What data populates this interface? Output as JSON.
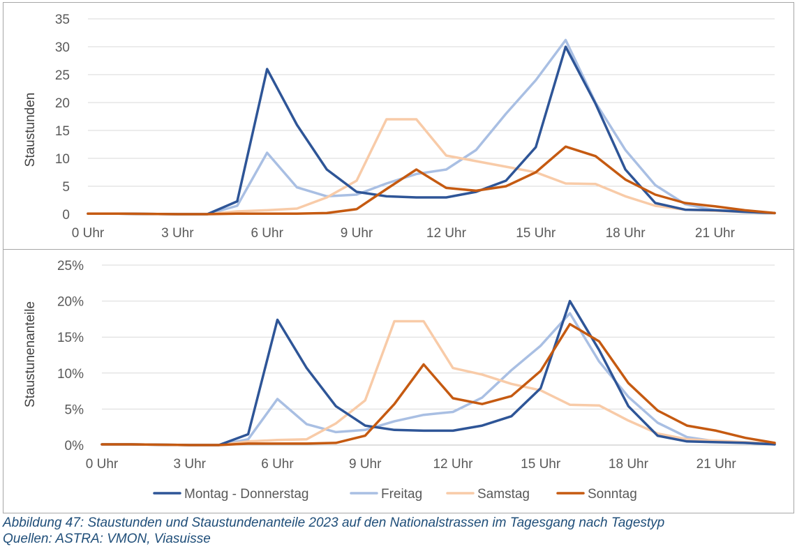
{
  "chart_data": [
    {
      "type": "line",
      "title": "",
      "xlabel": "",
      "ylabel": "Staustunden",
      "ylim": [
        0,
        35
      ],
      "yticks": [
        "0",
        "5",
        "10",
        "15",
        "20",
        "25",
        "30",
        "35"
      ],
      "ytick_values": [
        0,
        5,
        10,
        15,
        20,
        25,
        30,
        35
      ],
      "x": [
        0,
        1,
        2,
        3,
        4,
        5,
        6,
        7,
        8,
        9,
        10,
        11,
        12,
        13,
        14,
        15,
        16,
        17,
        18,
        19,
        20,
        21,
        22,
        23
      ],
      "xticks": [
        "0 Uhr",
        "3 Uhr",
        "6 Uhr",
        "9 Uhr",
        "12 Uhr",
        "15 Uhr",
        "18 Uhr",
        "21 Uhr"
      ],
      "xtick_values": [
        0,
        3,
        6,
        9,
        12,
        15,
        18,
        21
      ],
      "grid": true,
      "series": [
        {
          "name": "Freitag",
          "color": "#a9bfe3",
          "values": [
            0.1,
            0.1,
            0.05,
            0,
            0,
            1.5,
            11,
            4.8,
            3.2,
            3.5,
            5.5,
            7.2,
            8,
            11.5,
            18,
            24,
            31.2,
            20,
            11.5,
            5.2,
            1.8,
            0.7,
            0.5,
            0.2
          ]
        },
        {
          "name": "Samstag",
          "color": "#f8cba8",
          "values": [
            0.1,
            0.1,
            0.05,
            0,
            0,
            0.5,
            0.7,
            1,
            3,
            6,
            17,
            17,
            10.5,
            9.5,
            8.5,
            7.5,
            5.5,
            5.4,
            3.2,
            1.5,
            0.8,
            0.6,
            0.4,
            0.2
          ]
        },
        {
          "name": "Montag - Donnerstag",
          "color": "#2e5597",
          "values": [
            0.1,
            0.1,
            0.05,
            0,
            0,
            2.3,
            26,
            16,
            8,
            4,
            3.2,
            3,
            3,
            4,
            6,
            12,
            30,
            19.8,
            8,
            2,
            0.8,
            0.7,
            0.4,
            0.2
          ]
        },
        {
          "name": "Sonntag",
          "color": "#c55a11",
          "values": [
            0.1,
            0.1,
            0.05,
            0,
            0,
            0.1,
            0.1,
            0.1,
            0.2,
            0.9,
            4.5,
            8,
            4.7,
            4.2,
            5,
            7.5,
            12.1,
            10.4,
            6.2,
            3.5,
            2,
            1.4,
            0.7,
            0.2
          ]
        }
      ]
    },
    {
      "type": "line",
      "title": "",
      "xlabel": "",
      "ylabel": "Staustunenanteile",
      "ylim": [
        0,
        25
      ],
      "yticks": [
        "0%",
        "5%",
        "10%",
        "15%",
        "20%",
        "25%"
      ],
      "ytick_values": [
        0,
        5,
        10,
        15,
        20,
        25
      ],
      "x": [
        0,
        1,
        2,
        3,
        4,
        5,
        6,
        7,
        8,
        9,
        10,
        11,
        12,
        13,
        14,
        15,
        16,
        17,
        18,
        19,
        20,
        21,
        22,
        23
      ],
      "xticks": [
        "0 Uhr",
        "3 Uhr",
        "6 Uhr",
        "9 Uhr",
        "12 Uhr",
        "15 Uhr",
        "18 Uhr",
        "21 Uhr"
      ],
      "xtick_values": [
        0,
        3,
        6,
        9,
        12,
        15,
        18,
        21
      ],
      "grid": true,
      "legend": "bottom",
      "series": [
        {
          "name": "Freitag",
          "color": "#a9bfe3",
          "values": [
            0.1,
            0.1,
            0.05,
            0,
            0,
            0.8,
            6.4,
            2.9,
            1.8,
            2.1,
            3.3,
            4.2,
            4.6,
            6.6,
            10.4,
            13.8,
            18.3,
            11.6,
            6.7,
            3.1,
            1.1,
            0.5,
            0.3,
            0.1
          ]
        },
        {
          "name": "Samstag",
          "color": "#f8cba8",
          "values": [
            0.1,
            0.1,
            0.05,
            0,
            0,
            0.5,
            0.7,
            0.8,
            3,
            6.2,
            17.2,
            17.2,
            10.7,
            9.8,
            8.5,
            7.6,
            5.6,
            5.5,
            3.4,
            1.6,
            0.8,
            0.6,
            0.4,
            0.2
          ]
        },
        {
          "name": "Montag - Donnerstag",
          "color": "#2e5597",
          "values": [
            0.1,
            0.1,
            0.05,
            0,
            0,
            1.5,
            17.4,
            10.7,
            5.4,
            2.7,
            2.1,
            2,
            2,
            2.7,
            4,
            7.9,
            20,
            13.2,
            5.4,
            1.3,
            0.5,
            0.4,
            0.3,
            0.1
          ]
        },
        {
          "name": "Sonntag",
          "color": "#c55a11",
          "values": [
            0.1,
            0.1,
            0.05,
            0,
            0,
            0.2,
            0.2,
            0.2,
            0.3,
            1.3,
            5.7,
            11.2,
            6.5,
            5.7,
            6.8,
            10.3,
            16.8,
            14.4,
            8.6,
            4.8,
            2.7,
            2,
            1,
            0.3
          ]
        }
      ]
    }
  ],
  "legend": {
    "items": [
      {
        "label": "Montag - Donnerstag",
        "color": "#2e5597"
      },
      {
        "label": "Freitag",
        "color": "#a9bfe3"
      },
      {
        "label": "Samstag",
        "color": "#f8cba8"
      },
      {
        "label": "Sonntag",
        "color": "#c55a11"
      }
    ]
  },
  "caption": {
    "line1": "Abbildung 47: Staustunden und Staustundenanteile 2023 auf den Nationalstrassen im Tagesgang nach Tagestyp",
    "line2": "Quellen: ASTRA: VMON, Viasuisse"
  }
}
